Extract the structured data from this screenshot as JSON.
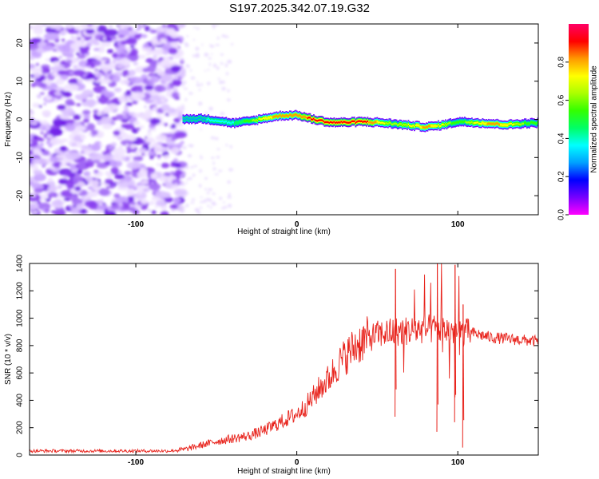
{
  "title": "S197.2025.342.07.19.G32",
  "chart_data": [
    {
      "type": "heatmap",
      "xlabel": "Height of straight line (km)",
      "ylabel": "Frequency (Hz)",
      "xlim": [
        -166,
        150
      ],
      "ylim": [
        -25,
        25
      ],
      "x_ticks": [
        -100,
        0,
        100
      ],
      "y_ticks": [
        -20,
        -10,
        0,
        10,
        20
      ],
      "noise_region_x": [
        -166,
        -71
      ],
      "ridge_start_x": -71,
      "ridge": {
        "x": [
          -71,
          -60,
          -50,
          -40,
          -30,
          -20,
          -10,
          0,
          10,
          20,
          30,
          40,
          50,
          60,
          70,
          80,
          90,
          100,
          110,
          120,
          130,
          140,
          150
        ],
        "frequency": [
          0.0,
          0.2,
          -0.3,
          -1.0,
          -0.5,
          0.3,
          1.0,
          1.1,
          0.0,
          -0.8,
          -0.8,
          -0.6,
          -0.8,
          -1.2,
          -1.6,
          -2.0,
          -1.5,
          -0.6,
          -0.8,
          -1.1,
          -1.4,
          -1.1,
          -0.9
        ],
        "amplitude": [
          0.25,
          0.3,
          0.35,
          0.4,
          0.55,
          0.75,
          0.8,
          0.8,
          0.9,
          0.95,
          0.95,
          0.95,
          0.75,
          0.6,
          0.7,
          0.8,
          0.7,
          0.5,
          0.7,
          0.8,
          0.75,
          0.6,
          0.5
        ]
      },
      "colorbar": {
        "label": "Normalized spectral amplitude",
        "ticks": [
          0.0,
          0.2,
          0.4,
          0.6,
          0.8
        ],
        "range": [
          0,
          1
        ],
        "colors": [
          "#ff00ff",
          "#7700ff",
          "#0000ff",
          "#00a0ff",
          "#00ffff",
          "#00ff66",
          "#33ff00",
          "#aaff00",
          "#ffff00",
          "#ff9900",
          "#ff0000",
          "#ff0066"
        ]
      }
    },
    {
      "type": "line",
      "xlabel": "Height of straight line (km)",
      "ylabel": "SNR (10 * v/v)",
      "xlim": [
        -166,
        150
      ],
      "ylim": [
        0,
        1400
      ],
      "x_ticks": [
        -100,
        0,
        100
      ],
      "y_ticks": [
        0,
        200,
        400,
        600,
        800,
        1000,
        1200,
        1400
      ],
      "color": "#e8241d",
      "series": [
        {
          "name": "SNR",
          "x": [
            -166,
            -140,
            -110,
            -90,
            -80,
            -70,
            -60,
            -50,
            -40,
            -30,
            -20,
            -10,
            0,
            5,
            10,
            15,
            20,
            25,
            30,
            35,
            40,
            50,
            60,
            70,
            80,
            90,
            100,
            110,
            120,
            130,
            140,
            150
          ],
          "values": [
            30,
            30,
            30,
            30,
            30,
            40,
            70,
            100,
            120,
            140,
            180,
            240,
            300,
            350,
            420,
            500,
            560,
            650,
            720,
            780,
            830,
            880,
            900,
            910,
            920,
            920,
            900,
            890,
            860,
            850,
            840,
            830
          ]
        }
      ],
      "spikes": [
        {
          "x": 61,
          "values": [
            280,
            1360
          ]
        },
        {
          "x": 87,
          "values": [
            170,
            1400
          ]
        },
        {
          "x": 98,
          "values": [
            240,
            1390
          ]
        },
        {
          "x": 103,
          "values": [
            55,
            1100
          ]
        }
      ]
    }
  ]
}
